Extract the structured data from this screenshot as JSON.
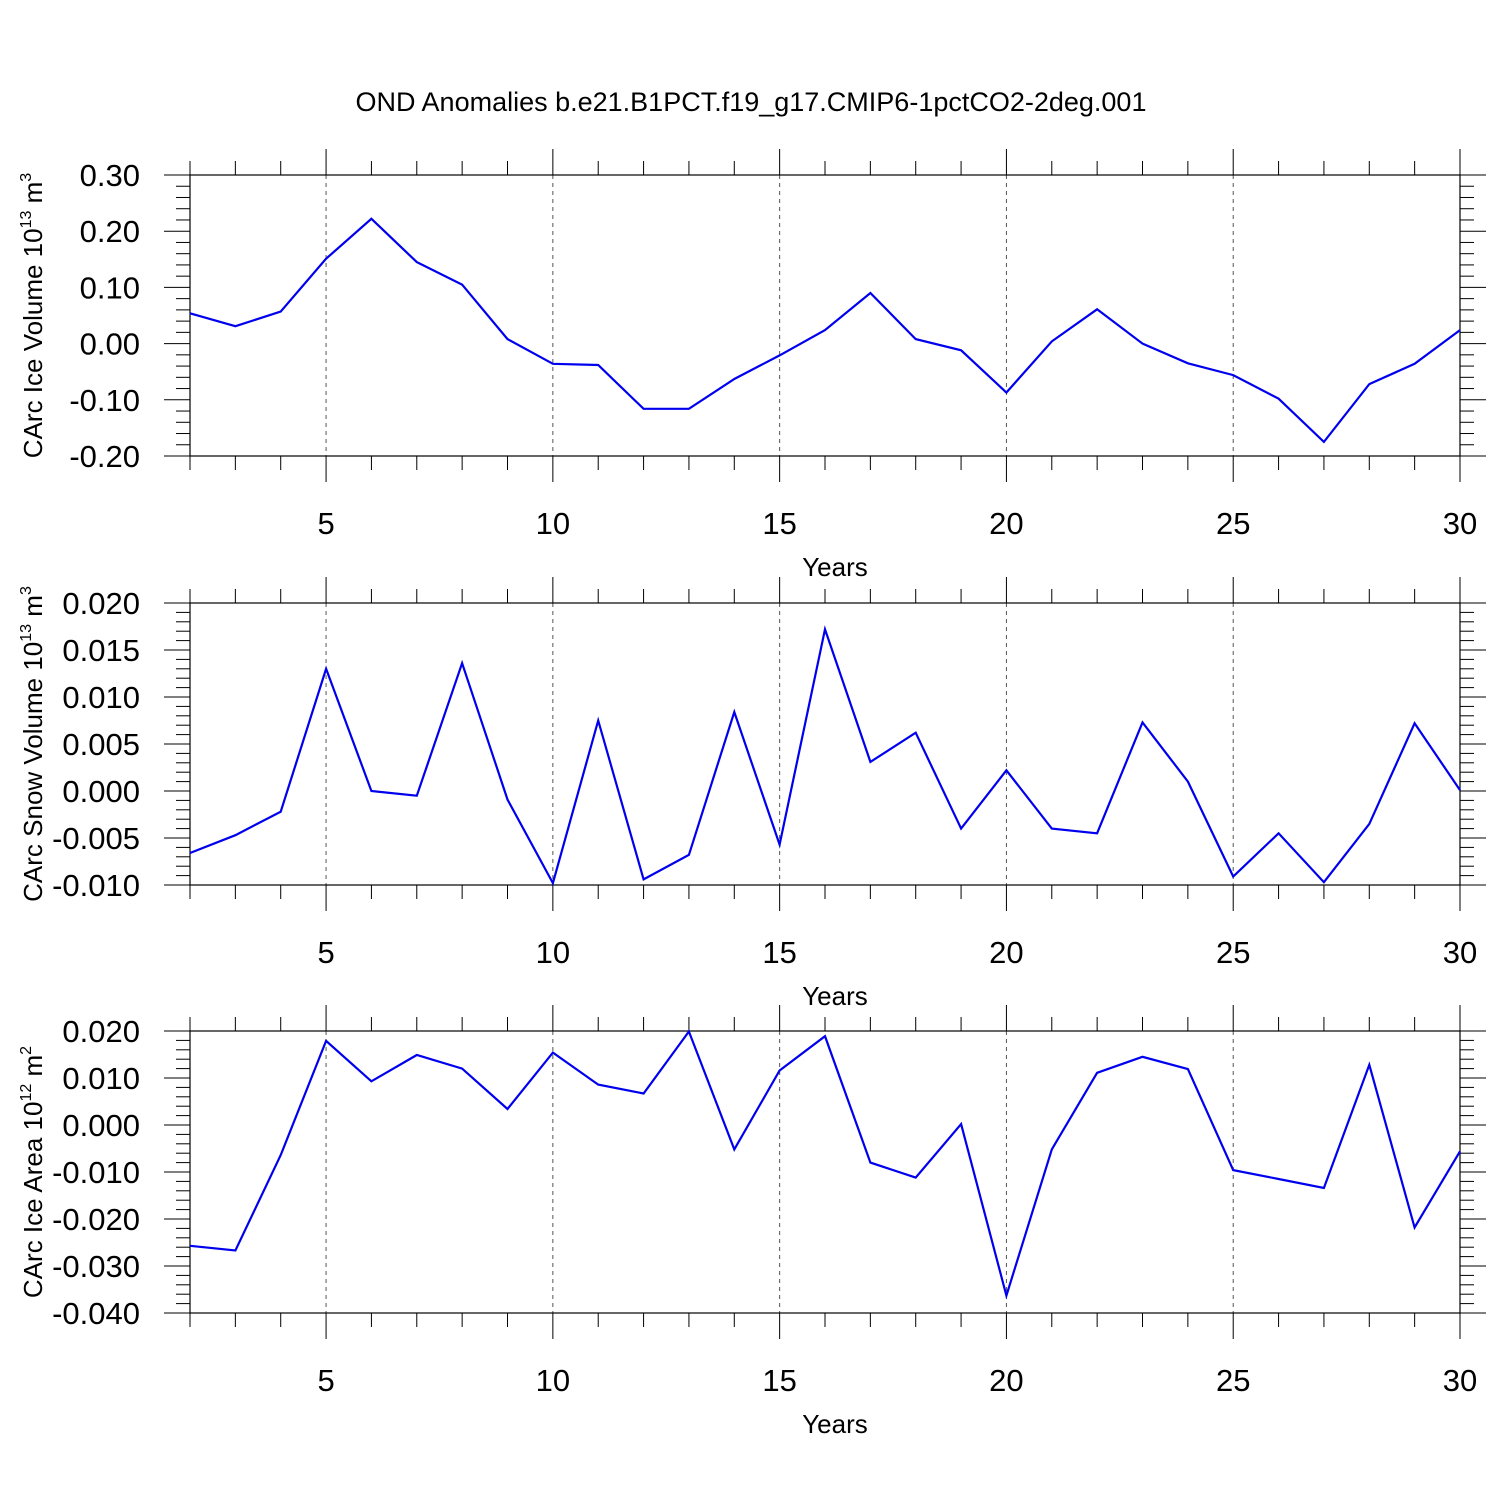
{
  "title": "OND Anomalies b.e21.B1PCT.f19_g17.CMIP6-1pctCO2-2deg.001",
  "colors": {
    "line": "#0000ee",
    "axis": "#000000",
    "grid": "#555555"
  },
  "chart_data": [
    {
      "type": "line",
      "ylabel": "CArc Ice Volume 10",
      "ylabel_exp": "13",
      "ylabel_unit": " m",
      "ylabel_unit_exp": "3",
      "xlabel": "Years",
      "xlim": [
        2,
        30
      ],
      "ylim": [
        -0.2,
        0.3
      ],
      "xticks": [
        5,
        10,
        15,
        20,
        25,
        30
      ],
      "yticks": [
        -0.2,
        -0.1,
        0.0,
        0.1,
        0.2,
        0.3
      ],
      "ytick_labels": [
        "-0.20",
        "-0.10",
        "0.00",
        "0.10",
        "0.20",
        "0.30"
      ],
      "x": [
        2,
        3,
        4,
        5,
        6,
        7,
        8,
        9,
        10,
        11,
        12,
        13,
        14,
        15,
        16,
        17,
        18,
        19,
        20,
        21,
        22,
        23,
        24,
        25,
        26,
        27,
        28,
        29,
        30
      ],
      "series": [
        {
          "values": [
            0.054,
            0.031,
            0.057,
            0.151,
            0.222,
            0.145,
            0.105,
            0.008,
            -0.036,
            -0.038,
            -0.116,
            -0.116,
            -0.063,
            -0.021,
            0.024,
            0.09,
            0.008,
            -0.012,
            -0.087,
            0.004,
            0.061,
            0.0,
            -0.035,
            -0.056,
            -0.098,
            -0.175,
            -0.072,
            -0.036,
            0.024
          ]
        }
      ],
      "grid": "vertical dashed at major x ticks"
    },
    {
      "type": "line",
      "ylabel": "CArc Snow Volume 10",
      "ylabel_exp": "13",
      "ylabel_unit": " m",
      "ylabel_unit_exp": "3",
      "xlabel": "Years",
      "xlim": [
        2,
        30
      ],
      "ylim": [
        -0.01,
        0.02
      ],
      "xticks": [
        5,
        10,
        15,
        20,
        25,
        30
      ],
      "yticks": [
        -0.01,
        -0.005,
        0.0,
        0.005,
        0.01,
        0.015,
        0.02
      ],
      "ytick_labels": [
        "-0.010",
        "-0.005",
        "0.000",
        "0.005",
        "0.010",
        "0.015",
        "0.020"
      ],
      "x": [
        2,
        3,
        4,
        5,
        6,
        7,
        8,
        9,
        10,
        11,
        12,
        13,
        14,
        15,
        16,
        17,
        18,
        19,
        20,
        21,
        22,
        23,
        24,
        25,
        26,
        27,
        28,
        29,
        30
      ],
      "series": [
        {
          "values": [
            -0.0066,
            -0.0047,
            -0.0022,
            0.013,
            0.0,
            -0.0005,
            0.0136,
            -0.0009,
            -0.0098,
            0.0075,
            -0.0094,
            -0.0068,
            0.0084,
            -0.0057,
            0.0172,
            0.0031,
            0.0062,
            -0.004,
            0.0022,
            -0.004,
            -0.0045,
            0.0073,
            0.001,
            -0.0091,
            -0.0045,
            -0.0097,
            -0.0035,
            0.0072,
            0.0001
          ]
        }
      ],
      "grid": "vertical dashed at major x ticks"
    },
    {
      "type": "line",
      "ylabel": "CArc Ice Area 10",
      "ylabel_exp": "12",
      "ylabel_unit": " m",
      "ylabel_unit_exp": "2",
      "xlabel": "Years",
      "xlim": [
        2,
        30
      ],
      "ylim": [
        -0.04,
        0.02
      ],
      "xticks": [
        5,
        10,
        15,
        20,
        25,
        30
      ],
      "yticks": [
        -0.04,
        -0.03,
        -0.02,
        -0.01,
        0.0,
        0.01,
        0.02
      ],
      "ytick_labels": [
        "-0.040",
        "-0.030",
        "-0.020",
        "-0.010",
        "0.000",
        "0.010",
        "0.020"
      ],
      "x": [
        2,
        3,
        4,
        5,
        6,
        7,
        8,
        9,
        10,
        11,
        12,
        13,
        14,
        15,
        16,
        17,
        18,
        19,
        20,
        21,
        22,
        23,
        24,
        25,
        26,
        27,
        28,
        29,
        30
      ],
      "series": [
        {
          "values": [
            -0.0257,
            -0.0267,
            -0.0064,
            0.0179,
            0.0093,
            0.0149,
            0.012,
            0.0034,
            0.0154,
            0.0086,
            0.0067,
            0.0199,
            -0.0052,
            0.0116,
            0.0189,
            -0.008,
            -0.0112,
            0.0002,
            -0.0363,
            -0.0052,
            0.0111,
            0.0145,
            0.0119,
            -0.0096,
            -0.0115,
            -0.0134,
            0.0128,
            -0.0218,
            -0.0056
          ]
        }
      ],
      "grid": "vertical dashed at major x ticks"
    }
  ]
}
